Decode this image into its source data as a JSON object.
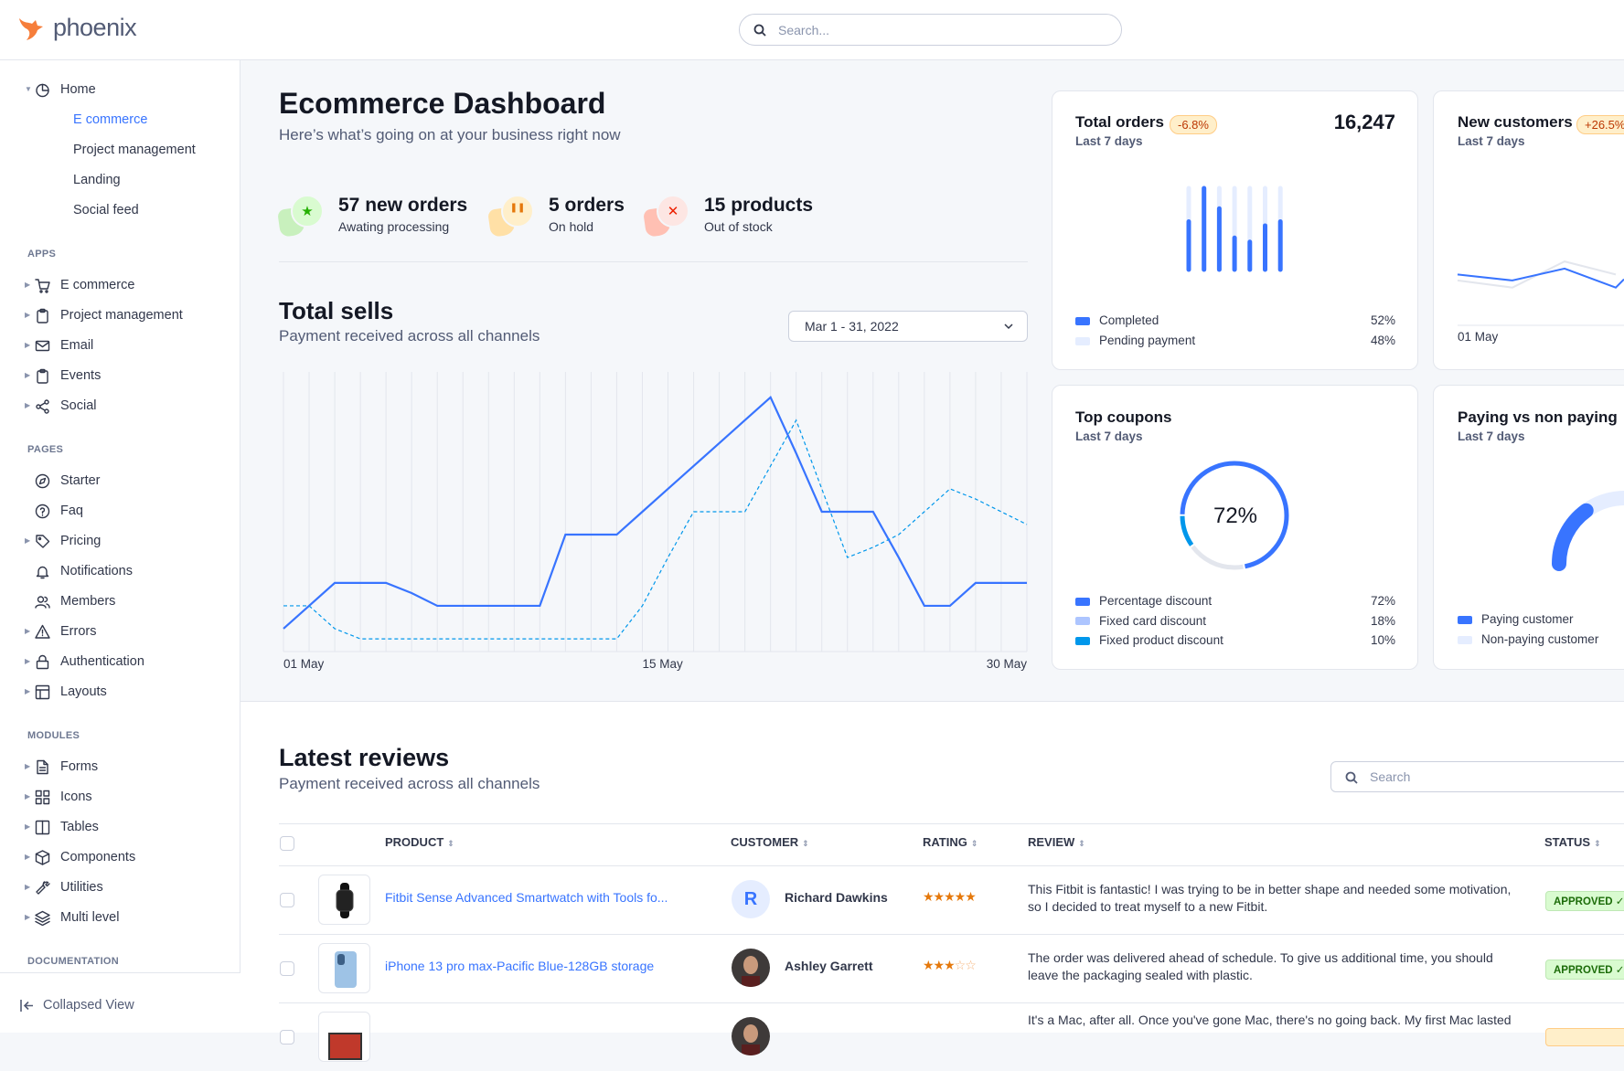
{
  "header": {
    "logo_text": "phoenix",
    "search_placeholder": "Search..."
  },
  "sidebar": {
    "sections": [
      {
        "label": "",
        "items": [
          {
            "label": "Home",
            "icon": "pie-chart-icon",
            "caret": "down",
            "children": [
              {
                "label": "E commerce",
                "active": true
              },
              {
                "label": "Project management"
              },
              {
                "label": "Landing"
              },
              {
                "label": "Social feed"
              }
            ]
          }
        ]
      },
      {
        "label": "APPS",
        "items": [
          {
            "label": "E commerce",
            "icon": "cart-icon",
            "caret": "right"
          },
          {
            "label": "Project management",
            "icon": "clipboard-icon",
            "caret": "right"
          },
          {
            "label": "Email",
            "icon": "mail-icon",
            "caret": "right"
          },
          {
            "label": "Events",
            "icon": "clipboard-icon",
            "caret": "right"
          },
          {
            "label": "Social",
            "icon": "share-icon",
            "caret": "right"
          }
        ]
      },
      {
        "label": "PAGES",
        "items": [
          {
            "label": "Starter",
            "icon": "compass-icon"
          },
          {
            "label": "Faq",
            "icon": "help-circle-icon"
          },
          {
            "label": "Pricing",
            "icon": "tag-icon",
            "caret": "right"
          },
          {
            "label": "Notifications",
            "icon": "bell-icon"
          },
          {
            "label": "Members",
            "icon": "users-icon"
          },
          {
            "label": "Errors",
            "icon": "alert-triangle-icon",
            "caret": "right"
          },
          {
            "label": "Authentication",
            "icon": "lock-icon",
            "caret": "right"
          },
          {
            "label": "Layouts",
            "icon": "layout-icon",
            "caret": "right"
          }
        ]
      },
      {
        "label": "MODULES",
        "items": [
          {
            "label": "Forms",
            "icon": "file-text-icon",
            "caret": "right"
          },
          {
            "label": "Icons",
            "icon": "grid-icon",
            "caret": "right"
          },
          {
            "label": "Tables",
            "icon": "columns-icon",
            "caret": "right"
          },
          {
            "label": "Components",
            "icon": "package-icon",
            "caret": "right"
          },
          {
            "label": "Utilities",
            "icon": "tool-icon",
            "caret": "right"
          },
          {
            "label": "Multi level",
            "icon": "layers-icon",
            "caret": "right"
          }
        ]
      },
      {
        "label": "DOCUMENTATION",
        "items": []
      }
    ],
    "collapse_label": "Collapsed View"
  },
  "page": {
    "title": "Ecommerce Dashboard",
    "subtitle": "Here’s what’s going on at your business right now"
  },
  "stats": [
    {
      "title": "57 new orders",
      "subtitle": "Awating processing",
      "icon": "star-icon",
      "color": "#25b003"
    },
    {
      "title": "5 orders",
      "subtitle": "On hold",
      "icon": "pause-icon",
      "color": "#e5780b"
    },
    {
      "title": "15 products",
      "subtitle": "Out of stock",
      "icon": "x-icon",
      "color": "#ec1f00"
    }
  ],
  "total_sells": {
    "title": "Total sells",
    "subtitle": "Payment received across all channels",
    "date_range": "Mar 1 - 31, 2022"
  },
  "cards": {
    "total_orders": {
      "title": "Total orders",
      "badge": "-6.8%",
      "subtitle": "Last 7 days",
      "value": "16,247",
      "legend": [
        {
          "label": "Completed",
          "value": "52%",
          "color": "#3874ff"
        },
        {
          "label": "Pending payment",
          "value": "48%",
          "color": "#e5edff"
        }
      ]
    },
    "new_customers": {
      "title": "New customers",
      "badge": "+26.5%",
      "subtitle": "Last 7 days",
      "x_label": "01 May"
    },
    "top_coupons": {
      "title": "Top coupons",
      "subtitle": "Last 7 days",
      "center": "72%",
      "legend": [
        {
          "label": "Percentage discount",
          "value": "72%",
          "color": "#3874ff"
        },
        {
          "label": "Fixed card discount",
          "value": "18%",
          "color": "#adc5ff"
        },
        {
          "label": "Fixed product discount",
          "value": "10%",
          "color": "#0097eb"
        }
      ]
    },
    "paying": {
      "title": "Paying vs non paying",
      "subtitle": "Last 7 days",
      "legend": [
        {
          "label": "Paying customer",
          "color": "#3874ff"
        },
        {
          "label": "Non-paying customer",
          "color": "#e5edff"
        }
      ]
    }
  },
  "chart_data": [
    {
      "type": "line",
      "id": "total-sells",
      "x": [
        "01 May",
        "02 May",
        "03 May",
        "04 May",
        "05 May",
        "06 May",
        "07 May",
        "08 May",
        "09 May",
        "10 May",
        "11 May",
        "12 May",
        "13 May",
        "14 May",
        "15 May",
        "16 May",
        "17 May",
        "18 May",
        "19 May",
        "20 May",
        "21 May",
        "22 May",
        "23 May",
        "24 May",
        "25 May",
        "26 May",
        "27 May",
        "28 May",
        "29 May",
        "30 May"
      ],
      "x_tick_labels": [
        "01 May",
        "15 May",
        "30 May"
      ],
      "ylim": [
        0,
        110
      ],
      "grid": "vertical",
      "series": [
        {
          "style": "solid",
          "color": "#3874ff",
          "values": [
            9,
            18,
            27,
            27,
            27,
            23,
            18,
            18,
            18,
            18,
            18,
            46,
            46,
            46,
            55,
            64,
            73,
            82,
            91,
            100,
            78,
            55,
            55,
            55,
            37,
            18,
            18,
            27,
            27,
            27
          ]
        },
        {
          "style": "dashed",
          "color": "#0097eb",
          "values": [
            18,
            18,
            9,
            5,
            5,
            5,
            5,
            5,
            5,
            5,
            5,
            5,
            5,
            5,
            18,
            37,
            55,
            55,
            55,
            73,
            91,
            64,
            37,
            41,
            46,
            55,
            64,
            60,
            55,
            50
          ]
        }
      ]
    },
    {
      "type": "bar",
      "id": "total-orders",
      "stacked_percent": true,
      "series": [
        {
          "name": "Completed",
          "values": [
            59,
            100,
            75,
            39,
            34,
            54,
            59
          ]
        },
        {
          "name": "Pending payment",
          "values": [
            41,
            0,
            25,
            61,
            66,
            46,
            41
          ]
        }
      ]
    },
    {
      "type": "line",
      "id": "new-customers",
      "x_tick_labels": [
        "01 May"
      ],
      "series": [
        {
          "color": "#3874ff",
          "values": [
            42,
            37,
            47,
            31,
            38
          ]
        },
        {
          "color": "#e3e6ed",
          "values": [
            37,
            31,
            53,
            42
          ]
        }
      ]
    },
    {
      "type": "pie",
      "id": "top-coupons",
      "donut": true,
      "categories": [
        "Percentage discount",
        "Fixed card discount",
        "Fixed product discount"
      ],
      "values": [
        72,
        18,
        10
      ]
    },
    {
      "type": "pie",
      "id": "paying",
      "gauge": true,
      "categories": [
        "Paying customer",
        "Non-paying customer"
      ],
      "values": [
        30,
        70
      ]
    }
  ],
  "reviews": {
    "title": "Latest reviews",
    "subtitle": "Payment received across all channels",
    "search_placeholder": "Search",
    "columns": [
      "PRODUCT",
      "CUSTOMER",
      "RATING",
      "REVIEW",
      "STATUS"
    ],
    "rows": [
      {
        "product": "Fitbit Sense Advanced Smartwatch with Tools fo...",
        "customer": "Richard Dawkins",
        "avatar_initial": "R",
        "rating": 5,
        "review": "This Fitbit is fantastic! I was trying to be in better shape and needed some motivation, so I decided to treat myself to a new Fitbit.",
        "status": "APPROVED ✓"
      },
      {
        "product": "iPhone 13 pro max-Pacific Blue-128GB storage",
        "customer": "Ashley Garrett",
        "rating": 3,
        "review": "The order was delivered ahead of schedule. To give us additional time, you should leave the packaging sealed with plastic.",
        "status": "APPROVED ✓"
      },
      {
        "review": "It's a Mac, after all. Once you've gone Mac, there's no going back. My first Mac lasted"
      }
    ]
  }
}
